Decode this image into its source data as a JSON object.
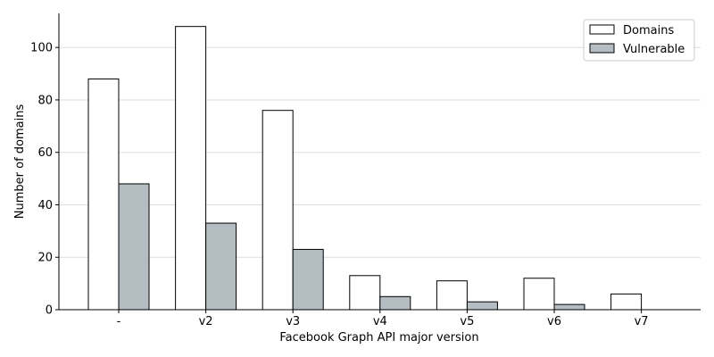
{
  "chart_data": {
    "type": "bar",
    "categories": [
      "-",
      "v2",
      "v3",
      "v4",
      "v5",
      "v6",
      "v7"
    ],
    "series": [
      {
        "name": "Domains",
        "values": [
          88,
          108,
          76,
          13,
          11,
          12,
          6
        ],
        "color": "#ffffff"
      },
      {
        "name": "Vulnerable",
        "values": [
          48,
          33,
          23,
          5,
          3,
          2,
          0
        ],
        "color": "#b3bdc2"
      }
    ],
    "title": "",
    "xlabel": "Facebook Graph API major version",
    "ylabel": "Number of domains",
    "ylim": [
      0,
      113
    ],
    "yticks": [
      0,
      20,
      40,
      60,
      80,
      100
    ],
    "grid": "horizontal",
    "legend_position": "top-right",
    "edge_color": "#000000",
    "grid_color": "#dddddd"
  }
}
